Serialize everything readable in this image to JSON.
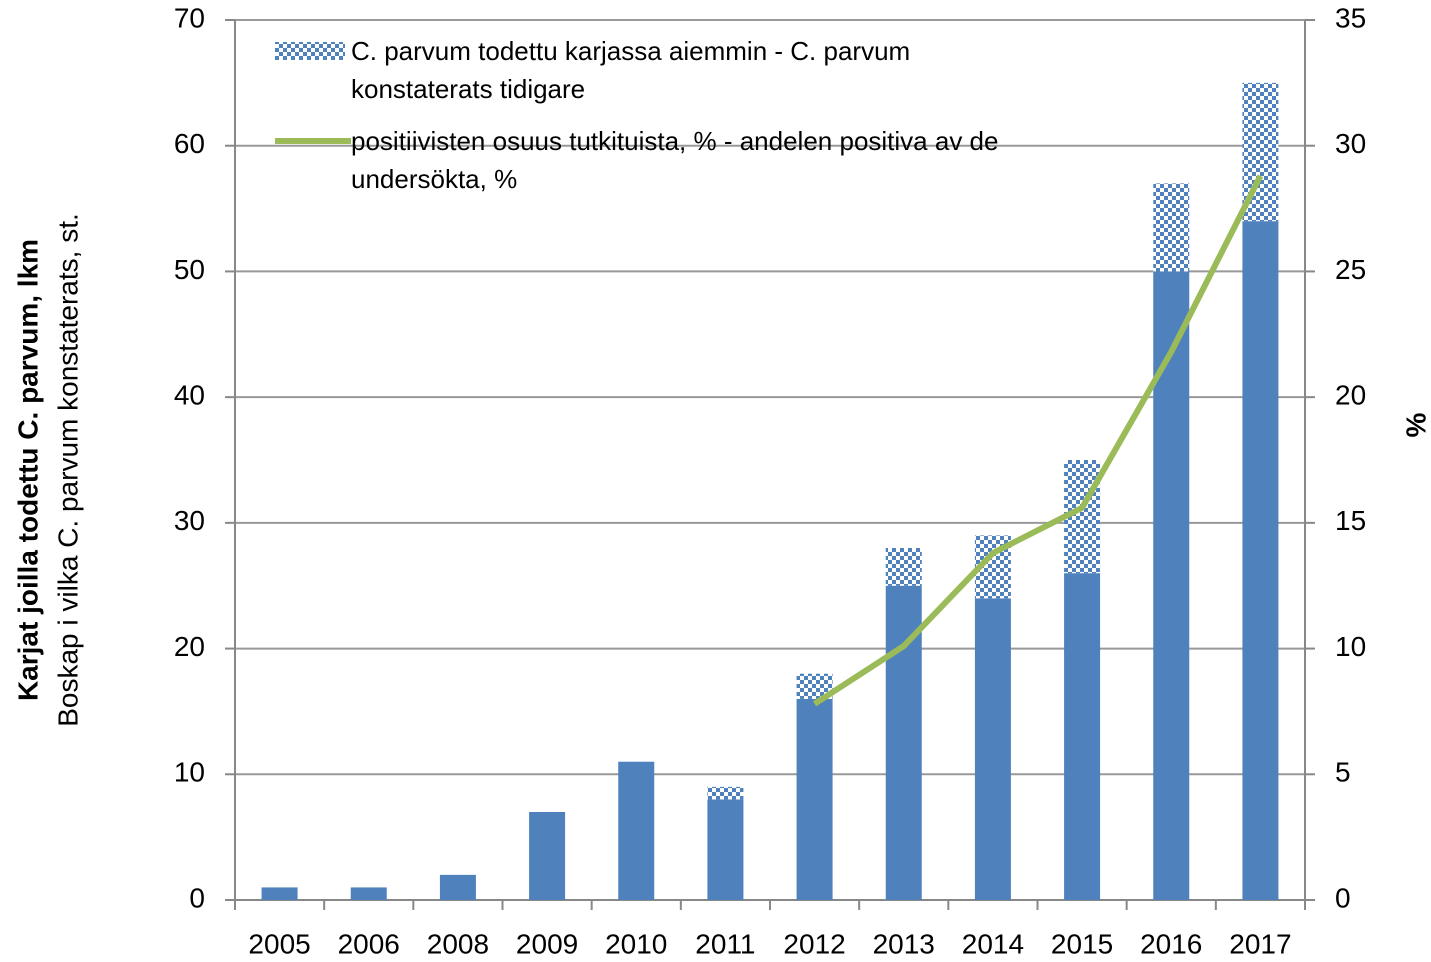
{
  "chart_data": {
    "type": "bar",
    "y_label": [
      "Karjat joilla todettu C. parvum, lkm",
      "Boskap i vilka C. parvum  konstaterats, st."
    ],
    "y2_label": "%",
    "categories": [
      "2005",
      "2006",
      "2008",
      "2009",
      "2010",
      "2011",
      "2012",
      "2013",
      "2014",
      "2015",
      "2016",
      "2017"
    ],
    "stacked": true,
    "series": [
      {
        "color": "#4f81bd",
        "pattern": "solid",
        "values": [
          1,
          1,
          2,
          7,
          11,
          8,
          16,
          25,
          24,
          26,
          50,
          54
        ]
      },
      {
        "name": "C. parvum todettu karjassa aiemmin - C. parvum konstaterats tidigare",
        "color": "#4f81bd",
        "pattern": "checkered",
        "values": [
          0,
          0,
          0,
          0,
          0,
          1,
          2,
          3,
          5,
          9,
          7,
          11
        ]
      },
      {
        "name": "positiivisten  osuus tutkituista, % - andelen positiva av de undersökta, %",
        "type": "line",
        "axis": "y2",
        "color": "#9bbb59",
        "values": [
          null,
          null,
          null,
          null,
          null,
          null,
          7.8,
          10.1,
          13.8,
          15.6,
          21.8,
          28.8
        ]
      }
    ],
    "ylim": [
      0,
      70
    ],
    "yticks": [
      0,
      10,
      20,
      30,
      40,
      50,
      60,
      70
    ],
    "y2lim": [
      0,
      35
    ],
    "y2ticks": [
      0,
      5,
      10,
      15,
      20,
      25,
      30,
      35
    ],
    "grid": true
  }
}
